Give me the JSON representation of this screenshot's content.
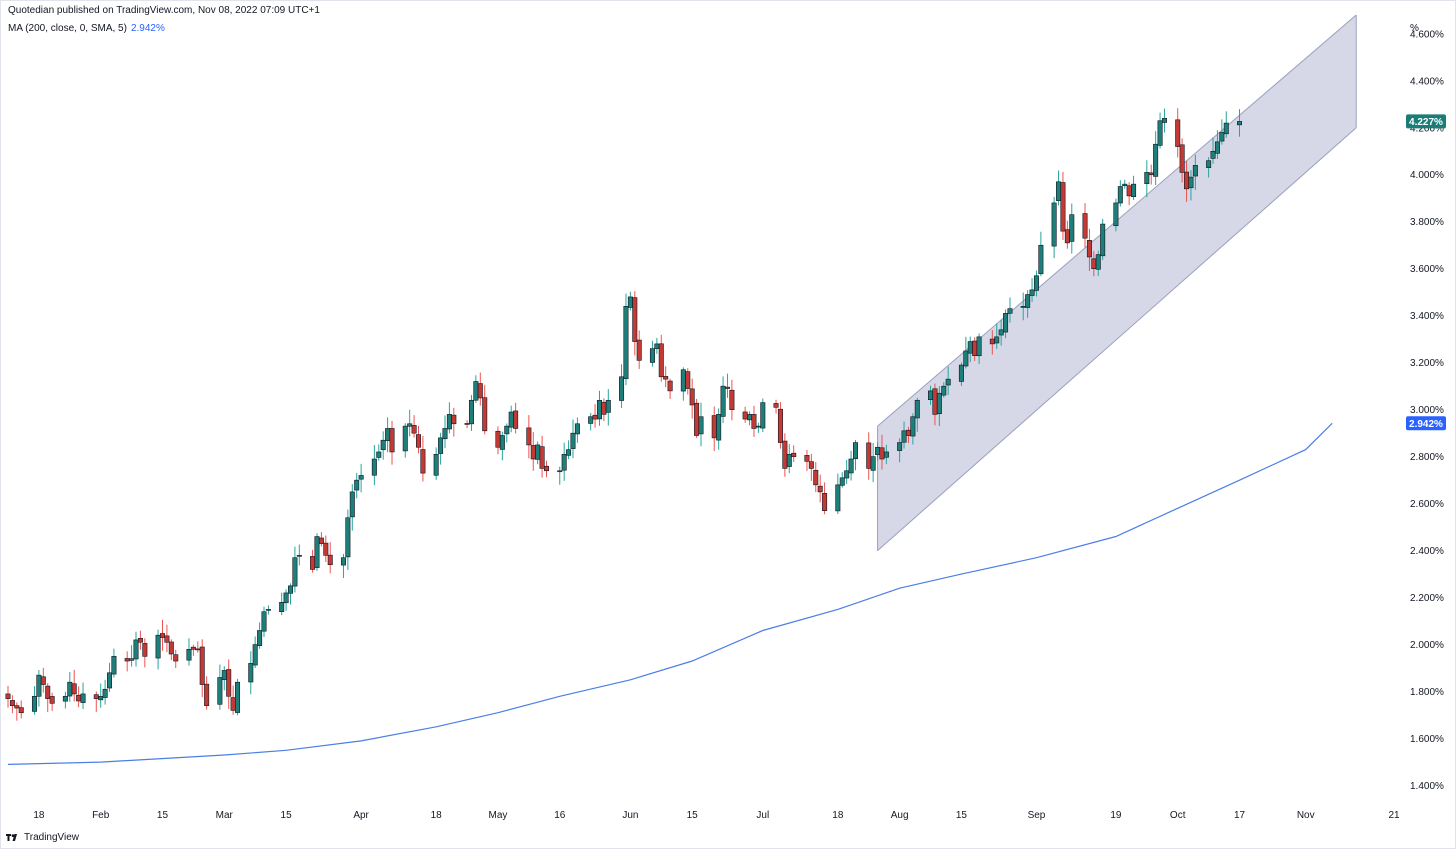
{
  "header": {
    "published": "Quotedian published on TradingView.com, Nov 08, 2022 07:09 UTC+1",
    "indicator": "MA (200, close, 0, SMA, 5)",
    "indicator_value": "2.942%"
  },
  "footer": {
    "brand": "TradingView"
  },
  "colors": {
    "up": "#26a69a",
    "up_fill": "#1e7f7a",
    "down": "#ef5350",
    "down_fill": "#c33a35",
    "candle_outline": "#131722",
    "ma": "#4a7fe5",
    "channel_fill": "#d1d4e6",
    "channel_line": "#9aa0bd",
    "last_badge": "#1b7d78",
    "ma_badge": "#2962ff"
  },
  "chart_data": {
    "type": "candlestick",
    "y_unit": "%",
    "ylim": [
      1.33,
      4.68
    ],
    "y_ticks": [
      "4.600%",
      "4.400%",
      "4.200%",
      "4.000%",
      "3.800%",
      "3.600%",
      "3.400%",
      "3.200%",
      "3.000%",
      "2.800%",
      "2.600%",
      "2.400%",
      "2.200%",
      "2.000%",
      "1.800%",
      "1.600%",
      "1.400%"
    ],
    "y_tick_values": [
      4.6,
      4.4,
      4.2,
      4.0,
      3.8,
      3.6,
      3.4,
      3.2,
      3.0,
      2.8,
      2.6,
      2.4,
      2.2,
      2.0,
      1.8,
      1.6,
      1.4
    ],
    "x_ticks": [
      {
        "label": "18",
        "date": "2022-01-18"
      },
      {
        "label": "Feb",
        "date": "2022-02-01"
      },
      {
        "label": "15",
        "date": "2022-02-15"
      },
      {
        "label": "Mar",
        "date": "2022-03-01"
      },
      {
        "label": "15",
        "date": "2022-03-15"
      },
      {
        "label": "Apr",
        "date": "2022-04-01"
      },
      {
        "label": "18",
        "date": "2022-04-18"
      },
      {
        "label": "May",
        "date": "2022-05-02"
      },
      {
        "label": "16",
        "date": "2022-05-16"
      },
      {
        "label": "Jun",
        "date": "2022-06-01"
      },
      {
        "label": "15",
        "date": "2022-06-15"
      },
      {
        "label": "Jul",
        "date": "2022-07-01"
      },
      {
        "label": "18",
        "date": "2022-07-18"
      },
      {
        "label": "Aug",
        "date": "2022-08-01"
      },
      {
        "label": "15",
        "date": "2022-08-15"
      },
      {
        "label": "Sep",
        "date": "2022-09-01"
      },
      {
        "label": "19",
        "date": "2022-09-19"
      },
      {
        "label": "Oct",
        "date": "2022-10-03"
      },
      {
        "label": "17",
        "date": "2022-10-17"
      },
      {
        "label": "Nov",
        "date": "2022-11-01"
      },
      {
        "label": "21",
        "date": "2022-11-21"
      }
    ],
    "series": [
      {
        "name": "price",
        "kind": "candles",
        "note": "daily closes, trading days only, 2022-01-11 to 2022-11-07",
        "closes": [
          1.77,
          1.74,
          1.73,
          1.71,
          1.78,
          1.87,
          1.83,
          1.77,
          1.75,
          1.78,
          1.84,
          1.79,
          1.76,
          1.79,
          1.77,
          1.78,
          1.81,
          1.88,
          1.95,
          1.93,
          1.94,
          2.02,
          2.01,
          1.95,
          2.04,
          2.03,
          2.01,
          1.96,
          1.93,
          1.98,
          1.98,
          1.98,
          1.83,
          1.74,
          1.86,
          1.89,
          1.78,
          1.72,
          1.84,
          1.92,
          2.0,
          2.06,
          2.14,
          2.15,
          2.18,
          2.22,
          2.25,
          2.37,
          2.38,
          2.32,
          2.46,
          2.43,
          2.38,
          2.34,
          2.37,
          2.54,
          2.65,
          2.7,
          2.72,
          2.79,
          2.82,
          2.87,
          2.92,
          2.82,
          2.93,
          2.94,
          2.9,
          2.84,
          2.73,
          2.81,
          2.88,
          2.92,
          2.98,
          2.94,
          2.94,
          3.04,
          3.12,
          3.05,
          2.91,
          2.84,
          2.89,
          2.93,
          2.99,
          2.92,
          2.85,
          2.79,
          2.85,
          2.75,
          2.74,
          2.74,
          2.81,
          2.83,
          2.9,
          2.94,
          2.97,
          2.96,
          3.04,
          2.98,
          3.04,
          3.14,
          3.44,
          3.48,
          3.29,
          3.21,
          3.26,
          3.28,
          3.14,
          3.13,
          3.08,
          3.17,
          3.09,
          3.02,
          2.89,
          2.97,
          2.88,
          2.98,
          3.1,
          3.09,
          3.0,
          2.96,
          2.98,
          2.92,
          2.93,
          3.03,
          3.01,
          2.86,
          2.75,
          2.81,
          2.8,
          2.78,
          2.75,
          2.68,
          2.65,
          2.57,
          2.68,
          2.71,
          2.74,
          2.79,
          2.86,
          2.75,
          2.8,
          2.84,
          2.79,
          2.82,
          2.86,
          2.91,
          2.89,
          2.97,
          3.04,
          3.08,
          2.98,
          3.07,
          3.1,
          3.13,
          3.19,
          3.25,
          3.29,
          3.23,
          3.31,
          3.28,
          3.31,
          3.34,
          3.41,
          3.43,
          3.44,
          3.49,
          3.51,
          3.57,
          3.7,
          3.88,
          3.97,
          3.76,
          3.71,
          3.83,
          3.73,
          3.65,
          3.6,
          3.66,
          3.79,
          3.88,
          3.95,
          3.96,
          3.91,
          3.96,
          4.01,
          4.0,
          4.13,
          4.23,
          4.24,
          4.12,
          4.01,
          3.94,
          3.99,
          4.04,
          4.06,
          4.1,
          4.14,
          4.18,
          4.22,
          4.227
        ]
      },
      {
        "name": "MA (200, close, 0, SMA, 5)",
        "kind": "line",
        "anchors": [
          [
            "2022-01-11",
            1.49
          ],
          [
            "2022-02-01",
            1.5
          ],
          [
            "2022-03-01",
            1.53
          ],
          [
            "2022-03-15",
            1.55
          ],
          [
            "2022-04-01",
            1.59
          ],
          [
            "2022-04-18",
            1.65
          ],
          [
            "2022-05-02",
            1.71
          ],
          [
            "2022-05-16",
            1.78
          ],
          [
            "2022-06-01",
            1.85
          ],
          [
            "2022-06-15",
            1.93
          ],
          [
            "2022-07-01",
            2.06
          ],
          [
            "2022-07-18",
            2.15
          ],
          [
            "2022-08-01",
            2.24
          ],
          [
            "2022-08-15",
            2.3
          ],
          [
            "2022-09-01",
            2.37
          ],
          [
            "2022-09-19",
            2.46
          ],
          [
            "2022-10-03",
            2.58
          ],
          [
            "2022-10-17",
            2.7
          ],
          [
            "2022-11-01",
            2.83
          ],
          [
            "2022-11-07",
            2.942
          ]
        ]
      },
      {
        "name": "channel",
        "kind": "parallel-channel",
        "upper": [
          [
            "2022-07-27",
            2.93
          ],
          [
            "2022-11-07",
            4.68
          ]
        ],
        "lower": [
          [
            "2022-07-27",
            2.4
          ],
          [
            "2022-11-07",
            4.2
          ]
        ]
      }
    ],
    "last_price_label": "4.227%",
    "ma_label": "2.942%",
    "grid": false,
    "legend": "top-left"
  }
}
